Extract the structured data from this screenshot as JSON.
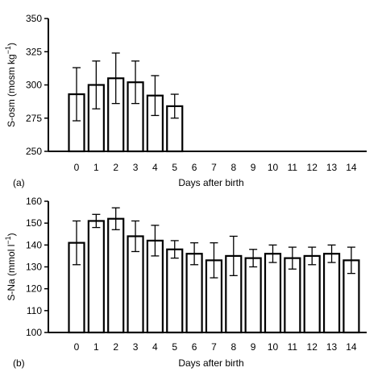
{
  "chart_data": [
    {
      "type": "bar",
      "panel_label": "(a)",
      "xlabel": "Days after birth",
      "ylabel": "S-osm (mosm kg",
      "ylabel_sup": "−1",
      "ylabel_close": ")",
      "ylim": [
        250,
        350
      ],
      "yticks": [
        250,
        275,
        300,
        325,
        350
      ],
      "categories": [
        "0",
        "1",
        "2",
        "3",
        "4",
        "5",
        "6",
        "7",
        "8",
        "9",
        "10",
        "11",
        "12",
        "13",
        "14"
      ],
      "values": [
        293,
        300,
        305,
        302,
        292,
        284,
        null,
        null,
        null,
        null,
        null,
        null,
        null,
        null,
        null
      ],
      "error": [
        20,
        18,
        19,
        16,
        15,
        9,
        null,
        null,
        null,
        null,
        null,
        null,
        null,
        null,
        null
      ],
      "grid": false
    },
    {
      "type": "bar",
      "panel_label": "(b)",
      "xlabel": "Days after birth",
      "ylabel": "S-Na (mmol l",
      "ylabel_sup": "−1",
      "ylabel_close": ")",
      "ylim": [
        100,
        160
      ],
      "yticks": [
        100,
        110,
        120,
        130,
        140,
        150,
        160
      ],
      "categories": [
        "0",
        "1",
        "2",
        "3",
        "4",
        "5",
        "6",
        "7",
        "8",
        "9",
        "10",
        "11",
        "12",
        "13",
        "14"
      ],
      "values": [
        141,
        151,
        152,
        144,
        142,
        138,
        136,
        133,
        135,
        134,
        136,
        134,
        135,
        136,
        133
      ],
      "error": [
        10,
        3,
        5,
        7,
        7,
        4,
        5,
        8,
        9,
        4,
        4,
        5,
        4,
        4,
        6
      ],
      "grid": false
    }
  ]
}
